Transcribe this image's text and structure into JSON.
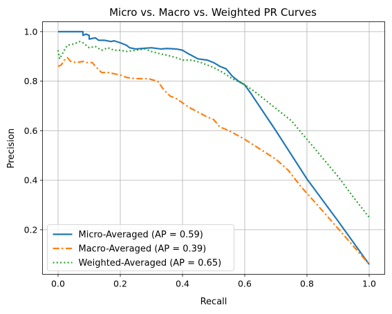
{
  "chart_data": {
    "type": "line",
    "title": "Micro vs. Macro vs. Weighted PR Curves",
    "xlabel": "Recall",
    "ylabel": "Precision",
    "xlim": [
      -0.05,
      1.05
    ],
    "ylim": [
      0.02,
      1.04
    ],
    "xticks": [
      0.0,
      0.2,
      0.4,
      0.6,
      0.8,
      1.0
    ],
    "xtick_labels": [
      "0.0",
      "0.2",
      "0.4",
      "0.6",
      "0.8",
      "1.0"
    ],
    "yticks": [
      0.2,
      0.4,
      0.6,
      0.8,
      1.0
    ],
    "ytick_labels": [
      "0.2",
      "0.4",
      "0.6",
      "0.8",
      "1.0"
    ],
    "grid": true,
    "legend_position": "lower-left",
    "series": [
      {
        "name": "Micro-Averaged (AP = 0.59)",
        "color": "#1f77b4",
        "style": "solid",
        "points": [
          [
            0.0,
            1.0
          ],
          [
            0.08,
            1.0
          ],
          [
            0.08,
            0.985
          ],
          [
            0.09,
            0.99
          ],
          [
            0.1,
            0.985
          ],
          [
            0.1,
            0.97
          ],
          [
            0.12,
            0.975
          ],
          [
            0.13,
            0.965
          ],
          [
            0.15,
            0.965
          ],
          [
            0.17,
            0.96
          ],
          [
            0.18,
            0.963
          ],
          [
            0.2,
            0.955
          ],
          [
            0.22,
            0.945
          ],
          [
            0.23,
            0.935
          ],
          [
            0.25,
            0.93
          ],
          [
            0.27,
            0.932
          ],
          [
            0.3,
            0.935
          ],
          [
            0.33,
            0.93
          ],
          [
            0.35,
            0.932
          ],
          [
            0.38,
            0.93
          ],
          [
            0.4,
            0.925
          ],
          [
            0.42,
            0.91
          ],
          [
            0.45,
            0.89
          ],
          [
            0.48,
            0.885
          ],
          [
            0.5,
            0.875
          ],
          [
            0.52,
            0.86
          ],
          [
            0.54,
            0.85
          ],
          [
            0.56,
            0.82
          ],
          [
            0.58,
            0.8
          ],
          [
            0.6,
            0.785
          ],
          [
            0.62,
            0.75
          ],
          [
            0.7,
            0.6
          ],
          [
            0.8,
            0.405
          ],
          [
            0.9,
            0.235
          ],
          [
            1.0,
            0.06
          ]
        ]
      },
      {
        "name": "Macro-Averaged (AP = 0.39)",
        "color": "#ff7f0e",
        "style": "dashdot",
        "points": [
          [
            0.0,
            0.86
          ],
          [
            0.01,
            0.865
          ],
          [
            0.02,
            0.885
          ],
          [
            0.03,
            0.895
          ],
          [
            0.04,
            0.88
          ],
          [
            0.06,
            0.875
          ],
          [
            0.08,
            0.88
          ],
          [
            0.09,
            0.875
          ],
          [
            0.11,
            0.875
          ],
          [
            0.12,
            0.86
          ],
          [
            0.14,
            0.835
          ],
          [
            0.16,
            0.835
          ],
          [
            0.18,
            0.83
          ],
          [
            0.2,
            0.825
          ],
          [
            0.22,
            0.815
          ],
          [
            0.25,
            0.81
          ],
          [
            0.29,
            0.81
          ],
          [
            0.32,
            0.8
          ],
          [
            0.34,
            0.765
          ],
          [
            0.36,
            0.74
          ],
          [
            0.38,
            0.73
          ],
          [
            0.42,
            0.695
          ],
          [
            0.45,
            0.675
          ],
          [
            0.48,
            0.655
          ],
          [
            0.5,
            0.645
          ],
          [
            0.52,
            0.615
          ],
          [
            0.55,
            0.6
          ],
          [
            0.6,
            0.565
          ],
          [
            0.65,
            0.525
          ],
          [
            0.7,
            0.485
          ],
          [
            0.74,
            0.44
          ],
          [
            0.78,
            0.375
          ],
          [
            0.83,
            0.305
          ],
          [
            0.9,
            0.205
          ],
          [
            1.0,
            0.06
          ]
        ]
      },
      {
        "name": "Weighted-Averaged (AP = 0.65)",
        "color": "#2ca02c",
        "style": "dotted",
        "points": [
          [
            0.0,
            0.925
          ],
          [
            0.005,
            0.89
          ],
          [
            0.02,
            0.925
          ],
          [
            0.03,
            0.945
          ],
          [
            0.05,
            0.95
          ],
          [
            0.07,
            0.96
          ],
          [
            0.08,
            0.955
          ],
          [
            0.1,
            0.935
          ],
          [
            0.12,
            0.94
          ],
          [
            0.14,
            0.925
          ],
          [
            0.16,
            0.935
          ],
          [
            0.18,
            0.925
          ],
          [
            0.2,
            0.925
          ],
          [
            0.22,
            0.92
          ],
          [
            0.25,
            0.925
          ],
          [
            0.28,
            0.93
          ],
          [
            0.3,
            0.92
          ],
          [
            0.33,
            0.91
          ],
          [
            0.35,
            0.905
          ],
          [
            0.38,
            0.895
          ],
          [
            0.4,
            0.885
          ],
          [
            0.43,
            0.885
          ],
          [
            0.46,
            0.875
          ],
          [
            0.5,
            0.855
          ],
          [
            0.53,
            0.835
          ],
          [
            0.56,
            0.81
          ],
          [
            0.6,
            0.785
          ],
          [
            0.63,
            0.76
          ],
          [
            0.7,
            0.69
          ],
          [
            0.75,
            0.64
          ],
          [
            0.8,
            0.565
          ],
          [
            0.85,
            0.49
          ],
          [
            0.9,
            0.415
          ],
          [
            0.95,
            0.33
          ],
          [
            1.0,
            0.25
          ]
        ]
      }
    ]
  }
}
